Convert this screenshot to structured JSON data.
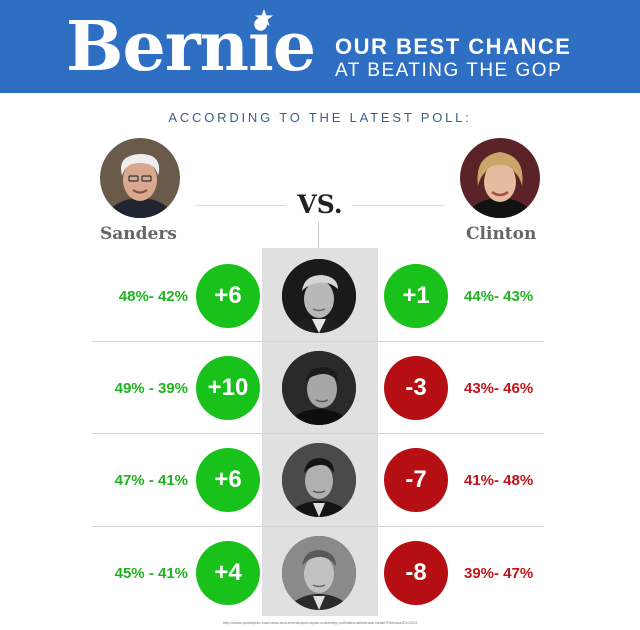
{
  "header": {
    "logo": "Bernie",
    "tagline_line1": "OUR BEST CHANCE",
    "tagline_line2": "AT BEATING THE GOP",
    "banner_color": "#2e6fc4"
  },
  "subheading": "ACCORDING TO THE LATEST POLL:",
  "vs_label": "VS.",
  "left_candidate": {
    "name": "Sanders"
  },
  "right_candidate": {
    "name": "Clinton"
  },
  "colors": {
    "positive": "#19c21a",
    "negative": "#b50f14"
  },
  "matchups": [
    {
      "sanders_result": "48%- 42%",
      "sanders_margin": "+6",
      "sanders_trend": "positive",
      "clinton_margin": "+1",
      "clinton_result": "44%- 43%",
      "clinton_trend": "positive"
    },
    {
      "sanders_result": "49% - 39%",
      "sanders_margin": "+10",
      "sanders_trend": "positive",
      "clinton_margin": "-3",
      "clinton_result": "43%- 46%",
      "clinton_trend": "negative"
    },
    {
      "sanders_result": "47% - 41%",
      "sanders_margin": "+6",
      "sanders_trend": "positive",
      "clinton_margin": "-7",
      "clinton_result": "41%- 48%",
      "clinton_trend": "negative"
    },
    {
      "sanders_result": "45% - 41%",
      "sanders_margin": "+4",
      "sanders_trend": "positive",
      "clinton_margin": "-8",
      "clinton_result": "39%- 47%",
      "clinton_trend": "negative"
    }
  ],
  "source_url": "http://www.quinnipiac.edu/news-and-events/quinnipiac-university-poll/national/release-detail?ReleaseID=2324"
}
